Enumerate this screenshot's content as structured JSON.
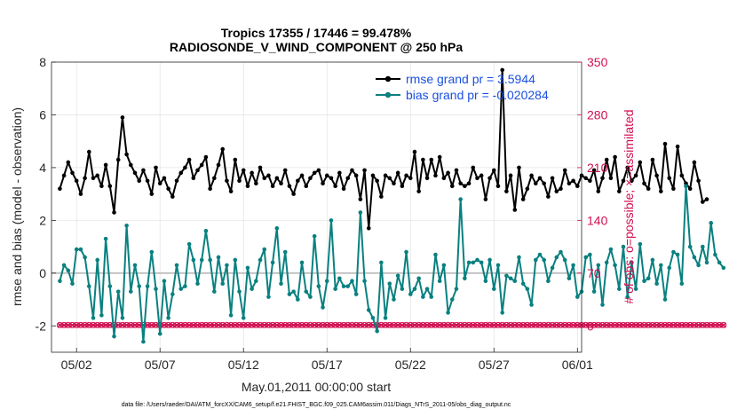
{
  "chart_data": {
    "type": "line",
    "title_line1": "Tropics 17355 / 17446 = 99.478%",
    "title_line2": "RADIOSONDE_V_WIND_COMPONENT @ 250 hPa",
    "xlabel": "May.01,2011 00:00:00 start",
    "ylabel_left": "rmse and bias (model - observation)",
    "ylabel_right": "# of obs: o=possible; ×=assimilated",
    "footer": "data file: /Users/raeder/DAI/ATM_forcXX/CAM6_setup/f.e21.FHIST_BGC.f09_025.CAM6assim.011/Diags_NTrS_2011-05/obs_diag_output.nc",
    "x_start_day": 0,
    "x_step_days": 0.25,
    "xlim": [
      -0.5,
      31.25
    ],
    "ylim_left": [
      -3,
      8
    ],
    "ylim_right": [
      -35,
      350
    ],
    "xticks": [
      {
        "day": 1,
        "label": "05/02"
      },
      {
        "day": 6,
        "label": "05/07"
      },
      {
        "day": 11,
        "label": "05/12"
      },
      {
        "day": 16,
        "label": "05/17"
      },
      {
        "day": 21,
        "label": "05/22"
      },
      {
        "day": 26,
        "label": "05/27"
      },
      {
        "day": 31,
        "label": "06/01"
      }
    ],
    "yticks_left": [
      -2,
      0,
      2,
      4,
      6,
      8
    ],
    "yticks_right": [
      0,
      70,
      140,
      210,
      280,
      350
    ],
    "zero_line": 0,
    "legend": [
      {
        "label": "rmse grand pr = 3.5944",
        "color": "#000000"
      },
      {
        "label": "bias grand pr = -0.020284",
        "color": "#0a8080"
      }
    ],
    "series": [
      {
        "name": "rmse",
        "axis": "left",
        "color": "#000000",
        "values": [
          3.2,
          3.7,
          4.2,
          3.8,
          3.5,
          3.0,
          3.6,
          4.6,
          3.6,
          3.7,
          3.3,
          4.1,
          3.3,
          2.3,
          4.3,
          5.9,
          4.5,
          4.1,
          3.8,
          3.5,
          3.9,
          3.5,
          3.0,
          4.0,
          3.4,
          3.6,
          3.2,
          2.9,
          3.5,
          3.8,
          4.0,
          4.3,
          3.6,
          3.9,
          4.1,
          4.4,
          3.2,
          3.6,
          4.1,
          4.7,
          3.5,
          3.1,
          4.3,
          3.5,
          3.9,
          3.3,
          3.8,
          3.4,
          4.0,
          3.6,
          3.7,
          3.3,
          3.6,
          3.4,
          3.9,
          3.3,
          3.0,
          3.5,
          3.7,
          3.3,
          3.6,
          3.8,
          3.9,
          3.4,
          3.7,
          3.6,
          3.3,
          3.8,
          3.2,
          3.6,
          3.9,
          3.7,
          2.8,
          3.9,
          1.7,
          3.7,
          3.5,
          2.9,
          3.7,
          3.6,
          3.4,
          3.8,
          3.3,
          3.7,
          3.6,
          4.6,
          3.1,
          4.3,
          3.6,
          4.3,
          3.7,
          4.4,
          3.6,
          3.8,
          3.3,
          3.9,
          3.4,
          3.3,
          3.4,
          4.0,
          3.6,
          3.7,
          2.8,
          3.6,
          3.9,
          3.3,
          7.7,
          3.1,
          3.7,
          2.4,
          4.0,
          2.8,
          3.2,
          3.7,
          3.4,
          3.6,
          3.4,
          2.9,
          3.6,
          3.1,
          3.2,
          3.9,
          3.4,
          3.5,
          3.3,
          3.7,
          3.6,
          3.5,
          3.9,
          3.1,
          3.6,
          4.3,
          3.6,
          4.4,
          3.1,
          3.5,
          4.0,
          3.5,
          3.7,
          4.2,
          3.4,
          3.2,
          4.3,
          3.7,
          3.1,
          4.9,
          3.6,
          3.2,
          4.8,
          3.7,
          3.4,
          3.2,
          4.2,
          3.5,
          2.7,
          2.8
        ]
      },
      {
        "name": "bias",
        "axis": "left",
        "color": "#0a8080",
        "values": [
          -0.3,
          0.3,
          0.1,
          -0.4,
          0.9,
          0.9,
          0.6,
          -0.5,
          -1.7,
          0.5,
          -1.6,
          1.3,
          -0.5,
          -2.4,
          -0.7,
          -1.7,
          1.8,
          -0.7,
          0.3,
          -0.5,
          -2.6,
          -0.5,
          0.8,
          -0.6,
          -2.3,
          -0.3,
          -1.7,
          -0.8,
          0.3,
          -0.6,
          -0.5,
          1.1,
          0.5,
          -0.4,
          0.5,
          1.6,
          0.5,
          -0.7,
          0.6,
          -0.4,
          0.3,
          -1.6,
          0.5,
          -0.7,
          -1.7,
          0.2,
          -0.6,
          -0.3,
          0.5,
          0.9,
          -0.9,
          0.4,
          1.7,
          -0.4,
          0.8,
          -0.8,
          -0.7,
          -1.0,
          0.4,
          -0.7,
          -0.9,
          1.4,
          -0.5,
          -1.3,
          -0.3,
          2.0,
          -0.6,
          -0.2,
          -0.5,
          -0.5,
          -0.3,
          -0.8,
          2.3,
          -0.3,
          -1.4,
          -1.7,
          -2.2,
          0.4,
          -1.7,
          -0.4,
          -1.0,
          -0.1,
          -0.6,
          0.8,
          -0.8,
          -0.6,
          -0.2,
          -0.9,
          -0.6,
          -0.9,
          0.7,
          -0.3,
          0.3,
          -1.5,
          -1.0,
          -0.6,
          2.8,
          -0.2,
          0.4,
          0.4,
          0.5,
          0.4,
          -0.3,
          0.5,
          -0.6,
          0.3,
          -1.5,
          -0.1,
          -0.2,
          -0.3,
          0.6,
          -0.4,
          -0.6,
          -1.2,
          0.5,
          0.7,
          0.5,
          -0.3,
          0.2,
          0.6,
          0.8,
          0.5,
          -0.2,
          0.3,
          -0.9,
          -0.7,
          0.6,
          0.7,
          -0.7,
          0.3,
          -1.2,
          0.4,
          0.9,
          0.3,
          -0.6,
          1.0,
          -0.9,
          0.4,
          -0.6,
          1.1,
          -0.3,
          -0.2,
          0.5,
          -0.4,
          0.3,
          -1.0,
          0.2,
          0.8,
          0.7,
          -0.4,
          3.3,
          1.0,
          0.6,
          0.3,
          1.0,
          0.4,
          1.9,
          0.7,
          0.4,
          0.2
        ]
      },
      {
        "name": "# obs possible",
        "axis": "right",
        "color": "#d01050",
        "marker": "circle",
        "values": [
          1,
          1,
          1,
          1,
          1,
          1,
          1,
          1,
          1,
          1,
          1,
          1,
          1,
          1,
          1,
          1,
          1,
          1,
          1,
          1,
          1,
          1,
          1,
          1,
          1,
          1,
          1,
          1,
          1,
          1,
          1,
          1,
          1,
          1,
          1,
          1,
          1,
          1,
          1,
          1,
          1,
          1,
          1,
          1,
          1,
          1,
          1,
          1,
          1,
          1,
          1,
          1,
          1,
          1,
          1,
          1,
          1,
          1,
          1,
          1,
          1,
          1,
          1,
          1,
          1,
          1,
          1,
          1,
          1,
          1,
          1,
          1,
          1,
          1,
          1,
          1,
          1,
          1,
          1,
          1,
          1,
          1,
          1,
          1,
          1,
          1,
          1,
          1,
          1,
          1,
          1,
          1,
          1,
          1,
          1,
          1,
          1,
          1,
          1,
          1,
          1,
          1,
          1,
          1,
          1,
          1,
          1,
          1,
          1,
          1,
          1,
          1,
          1,
          1,
          1,
          1,
          1,
          1,
          1,
          1,
          1,
          1,
          1,
          1,
          1,
          1,
          1,
          1,
          1,
          1,
          1,
          1,
          1,
          1,
          1,
          1,
          1,
          1,
          1,
          1,
          1,
          1,
          1,
          1,
          1,
          1,
          1,
          1,
          1,
          1,
          1,
          1,
          1,
          1,
          1,
          1,
          1,
          1,
          1,
          1
        ]
      },
      {
        "name": "# obs assimilated",
        "axis": "right",
        "color": "#d01050",
        "marker": "x",
        "values": [
          1,
          1,
          1,
          1,
          1,
          1,
          1,
          1,
          1,
          1,
          1,
          1,
          1,
          1,
          1,
          1,
          1,
          1,
          1,
          1,
          1,
          1,
          1,
          1,
          1,
          1,
          1,
          1,
          1,
          1,
          1,
          1,
          1,
          1,
          1,
          1,
          1,
          1,
          1,
          1,
          1,
          1,
          1,
          1,
          1,
          1,
          1,
          1,
          1,
          1,
          1,
          1,
          1,
          1,
          1,
          1,
          1,
          1,
          1,
          1,
          1,
          1,
          1,
          1,
          1,
          1,
          1,
          1,
          1,
          1,
          1,
          1,
          1,
          1,
          1,
          1,
          1,
          1,
          1,
          1,
          1,
          1,
          1,
          1,
          1,
          1,
          1,
          1,
          1,
          1,
          1,
          1,
          1,
          1,
          1,
          1,
          1,
          1,
          1,
          1,
          1,
          1,
          1,
          1,
          1,
          1,
          1,
          1,
          1,
          1,
          1,
          1,
          1,
          1,
          1,
          1,
          1,
          1,
          1,
          1,
          1,
          1,
          1,
          1,
          1,
          1,
          1,
          1,
          1,
          1,
          1,
          1,
          1,
          1,
          1,
          1,
          1,
          1,
          1,
          1,
          1,
          1,
          1,
          1,
          1,
          1,
          1,
          1,
          1,
          1,
          1,
          1,
          1,
          1,
          1,
          1,
          1,
          1,
          1,
          1
        ]
      }
    ]
  }
}
